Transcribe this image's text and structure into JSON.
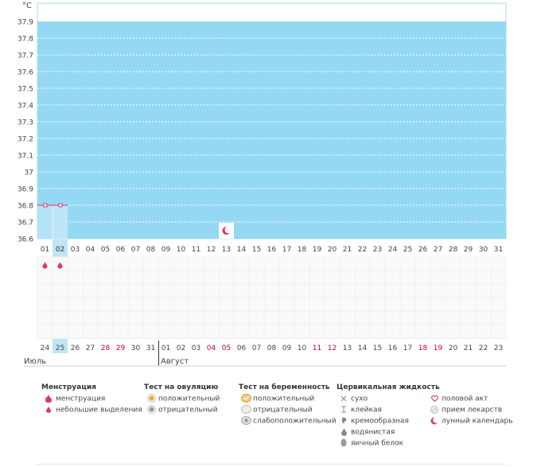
{
  "chart": {
    "unit_label": "°C",
    "y_ticks": [
      "37.9",
      "37.8",
      "37.7",
      "37.6",
      "37.5",
      "37.4",
      "37.3",
      "37.2",
      "37.1",
      "37",
      "36.9",
      "36.8",
      "36.7",
      "36.6"
    ],
    "cycle_days": [
      "01",
      "02",
      "03",
      "04",
      "05",
      "06",
      "07",
      "08",
      "09",
      "10",
      "11",
      "12",
      "13",
      "14",
      "15",
      "16",
      "17",
      "18",
      "19",
      "20",
      "21",
      "22",
      "23",
      "24",
      "25",
      "26",
      "27",
      "28",
      "29",
      "30",
      "31"
    ],
    "selected_day_index": 1,
    "calendar_dates": [
      "24",
      "25",
      "26",
      "27",
      "28",
      "29",
      "30",
      "31",
      "01",
      "02",
      "03",
      "04",
      "05",
      "06",
      "07",
      "08",
      "09",
      "10",
      "11",
      "12",
      "13",
      "14",
      "15",
      "16",
      "17",
      "18",
      "19",
      "20",
      "21",
      "22",
      "23"
    ],
    "red_date_indices": [
      4,
      5,
      11,
      12,
      18,
      19,
      25,
      26
    ],
    "month_labels": [
      {
        "text": "Июль",
        "start_index": 0
      },
      {
        "text": "Август",
        "start_index": 8
      }
    ],
    "moon_day_index": 12,
    "menstruation_marks": [
      0,
      1
    ]
  },
  "chart_data": {
    "type": "line",
    "x": [
      "01",
      "02"
    ],
    "series": [
      {
        "values": [
          36.8,
          36.8
        ]
      }
    ],
    "ylim": [
      36.6,
      37.9
    ]
  },
  "legend": {
    "menstruation": {
      "title": "Менструация",
      "items": [
        {
          "icon": "menstruation-drop-icon",
          "label": "менструация"
        },
        {
          "icon": "spotting-drop-icon",
          "label": "небольшие выделения"
        }
      ]
    },
    "ovulation_test": {
      "title": "Тест на овуляцию",
      "items": [
        {
          "icon": "ovulation-positive-icon",
          "label": "положительный"
        },
        {
          "icon": "ovulation-negative-icon",
          "label": "отрицательный"
        }
      ]
    },
    "pregnancy_test": {
      "title": "Тест на беременность",
      "items": [
        {
          "icon": "pregnancy-positive-icon",
          "label": "положительный"
        },
        {
          "icon": "pregnancy-negative-icon",
          "label": "отрицательный"
        },
        {
          "icon": "pregnancy-weak-positive-icon",
          "label": "слабоположительный"
        }
      ]
    },
    "cervical_fluid": {
      "title": "Цервикальная жидкость",
      "items": [
        {
          "icon": "dry-icon",
          "label": "сухо"
        },
        {
          "icon": "sticky-icon",
          "label": "клейкая"
        },
        {
          "icon": "creamy-icon",
          "label": "кремообразная"
        },
        {
          "icon": "watery-icon",
          "label": "водянистая"
        },
        {
          "icon": "egg-white-icon",
          "label": "яичный белок"
        }
      ]
    },
    "other": {
      "items": [
        {
          "icon": "heart-icon",
          "label": "половой акт"
        },
        {
          "icon": "pill-icon",
          "label": "прием лекарств"
        },
        {
          "icon": "moon-icon",
          "label": "лунный календарь"
        }
      ]
    }
  },
  "colors": {
    "chart_fill": "#95d8f3",
    "grid_line": "#ffffff",
    "temperature_line": "#e0336f",
    "selected_day": "#bfe6f7",
    "red_date": "#cc0033",
    "drop": "#e0336f"
  }
}
